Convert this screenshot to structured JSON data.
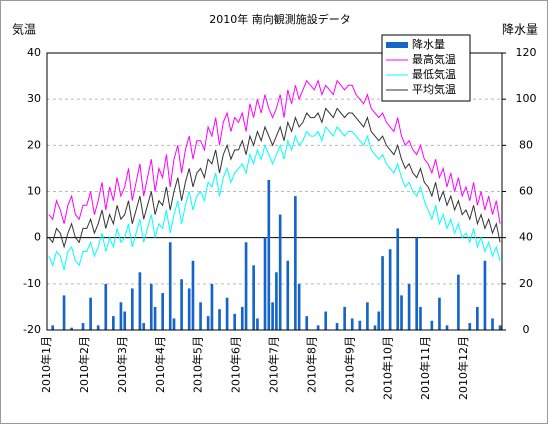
{
  "chart_data": {
    "type": "combo",
    "title": "2010年 南向観測施設データ",
    "ylabel": "気温",
    "y2label": "降水量",
    "categories": [
      "2010年1月",
      null,
      null,
      null,
      null,
      null,
      null,
      null,
      null,
      null,
      "2010年2月",
      null,
      null,
      null,
      null,
      null,
      null,
      null,
      null,
      null,
      "2010年3月",
      null,
      null,
      null,
      null,
      null,
      null,
      null,
      null,
      null,
      "2010年4月",
      null,
      null,
      null,
      null,
      null,
      null,
      null,
      null,
      null,
      "2010年5月",
      null,
      null,
      null,
      null,
      null,
      null,
      null,
      null,
      null,
      "2010年6月",
      null,
      null,
      null,
      null,
      null,
      null,
      null,
      null,
      null,
      "2010年7月",
      null,
      null,
      null,
      null,
      null,
      null,
      null,
      null,
      null,
      "2010年8月",
      null,
      null,
      null,
      null,
      null,
      null,
      null,
      null,
      null,
      "2010年9月",
      null,
      null,
      null,
      null,
      null,
      null,
      null,
      null,
      null,
      "2010年10月",
      null,
      null,
      null,
      null,
      null,
      null,
      null,
      null,
      null,
      "2010年11月",
      null,
      null,
      null,
      null,
      null,
      null,
      null,
      null,
      null,
      "2010年12月",
      null,
      null,
      null,
      null,
      null,
      null,
      null,
      null,
      null
    ],
    "ylim": [
      -20,
      40
    ],
    "yticks": [
      -20,
      -10,
      0,
      10,
      20,
      30,
      40
    ],
    "y2lim": [
      0,
      120
    ],
    "y2ticks": [
      0,
      20,
      40,
      60,
      80,
      100,
      120
    ],
    "grid": true,
    "legend": "upper right",
    "series": [
      {
        "name": "降水量",
        "type": "bar",
        "axis": "y2",
        "color": "#1565c8",
        "values": [
          0,
          2,
          0,
          0,
          15,
          0,
          1,
          0,
          0,
          3,
          0,
          14,
          0,
          2,
          0,
          20,
          0,
          6,
          0,
          12,
          8,
          0,
          18,
          0,
          25,
          3,
          0,
          20,
          10,
          0,
          16,
          0,
          38,
          5,
          0,
          22,
          0,
          18,
          30,
          0,
          12,
          0,
          6,
          20,
          0,
          9,
          0,
          14,
          0,
          7,
          0,
          10,
          38,
          0,
          28,
          5,
          0,
          40,
          65,
          12,
          25,
          50,
          0,
          30,
          0,
          58,
          20,
          0,
          6,
          0,
          0,
          2,
          0,
          8,
          0,
          0,
          3,
          0,
          10,
          0,
          5,
          0,
          4,
          0,
          12,
          0,
          2,
          8,
          32,
          0,
          35,
          0,
          44,
          15,
          0,
          20,
          0,
          40,
          10,
          0,
          0,
          4,
          0,
          14,
          0,
          2,
          0,
          0,
          24,
          0,
          0,
          3,
          0,
          10,
          0,
          30,
          0,
          5,
          0,
          2
        ]
      },
      {
        "name": "最高気温",
        "type": "line",
        "color": "#ff00ff",
        "values": [
          5,
          4,
          8,
          6,
          3,
          7,
          9,
          5,
          4,
          7,
          7,
          10,
          5,
          8,
          12,
          6,
          11,
          8,
          13,
          9,
          11,
          15,
          8,
          12,
          16,
          9,
          13,
          17,
          10,
          15,
          13,
          18,
          11,
          17,
          20,
          14,
          19,
          22,
          17,
          21,
          21,
          19,
          24,
          22,
          26,
          20,
          25,
          27,
          23,
          26,
          25,
          27,
          23,
          29,
          26,
          30,
          27,
          31,
          28,
          26,
          28,
          31,
          26,
          32,
          29,
          33,
          30,
          32,
          34,
          33,
          32,
          34,
          31,
          33,
          32,
          31,
          34,
          33,
          32,
          33,
          33,
          31,
          30,
          29,
          31,
          28,
          27,
          26,
          27,
          25,
          24,
          23,
          26,
          22,
          20,
          21,
          19,
          18,
          20,
          17,
          16,
          14,
          17,
          13,
          15,
          11,
          14,
          10,
          13,
          9,
          11,
          8,
          12,
          7,
          10,
          6,
          9,
          5,
          8,
          3
        ]
      },
      {
        "name": "最低気温",
        "type": "line",
        "color": "#00ffff",
        "values": [
          -4,
          -6,
          -3,
          -4,
          -7,
          -3,
          -2,
          -5,
          -6,
          -3,
          -3,
          -1,
          -4,
          -2,
          1,
          -3,
          0,
          -2,
          2,
          -1,
          0,
          3,
          -2,
          1,
          4,
          -1,
          2,
          5,
          0,
          3,
          2,
          6,
          1,
          5,
          8,
          3,
          7,
          10,
          6,
          9,
          10,
          8,
          12,
          11,
          14,
          9,
          13,
          15,
          12,
          14,
          15,
          16,
          14,
          18,
          16,
          19,
          17,
          20,
          18,
          16,
          18,
          20,
          17,
          21,
          19,
          22,
          20,
          21,
          23,
          22,
          22,
          23,
          21,
          24,
          23,
          22,
          24,
          23,
          22,
          23,
          23,
          22,
          21,
          20,
          22,
          19,
          18,
          17,
          18,
          16,
          15,
          14,
          16,
          13,
          11,
          12,
          10,
          9,
          11,
          8,
          6,
          4,
          7,
          3,
          5,
          2,
          4,
          1,
          3,
          0,
          1,
          -1,
          2,
          -2,
          0,
          -3,
          -1,
          -4,
          -2,
          -5
        ]
      },
      {
        "name": "平均気温",
        "type": "line",
        "color": "#333333",
        "values": [
          0,
          -1,
          2,
          1,
          -2,
          1,
          3,
          0,
          -1,
          2,
          2,
          4,
          1,
          3,
          6,
          2,
          5,
          3,
          7,
          4,
          5,
          8,
          3,
          6,
          9,
          4,
          7,
          10,
          5,
          8,
          7,
          11,
          6,
          10,
          13,
          8,
          12,
          15,
          11,
          14,
          15,
          13,
          17,
          16,
          19,
          14,
          18,
          20,
          17,
          19,
          19,
          21,
          18,
          22,
          20,
          23,
          21,
          24,
          22,
          20,
          22,
          24,
          21,
          25,
          23,
          26,
          24,
          25,
          27,
          26,
          26,
          27,
          25,
          28,
          27,
          26,
          28,
          27,
          26,
          27,
          27,
          26,
          25,
          24,
          26,
          23,
          22,
          21,
          22,
          20,
          19,
          18,
          20,
          17,
          15,
          16,
          14,
          13,
          15,
          12,
          11,
          9,
          12,
          8,
          10,
          7,
          9,
          6,
          8,
          5,
          6,
          4,
          7,
          3,
          5,
          2,
          4,
          1,
          3,
          -1
        ]
      }
    ]
  }
}
